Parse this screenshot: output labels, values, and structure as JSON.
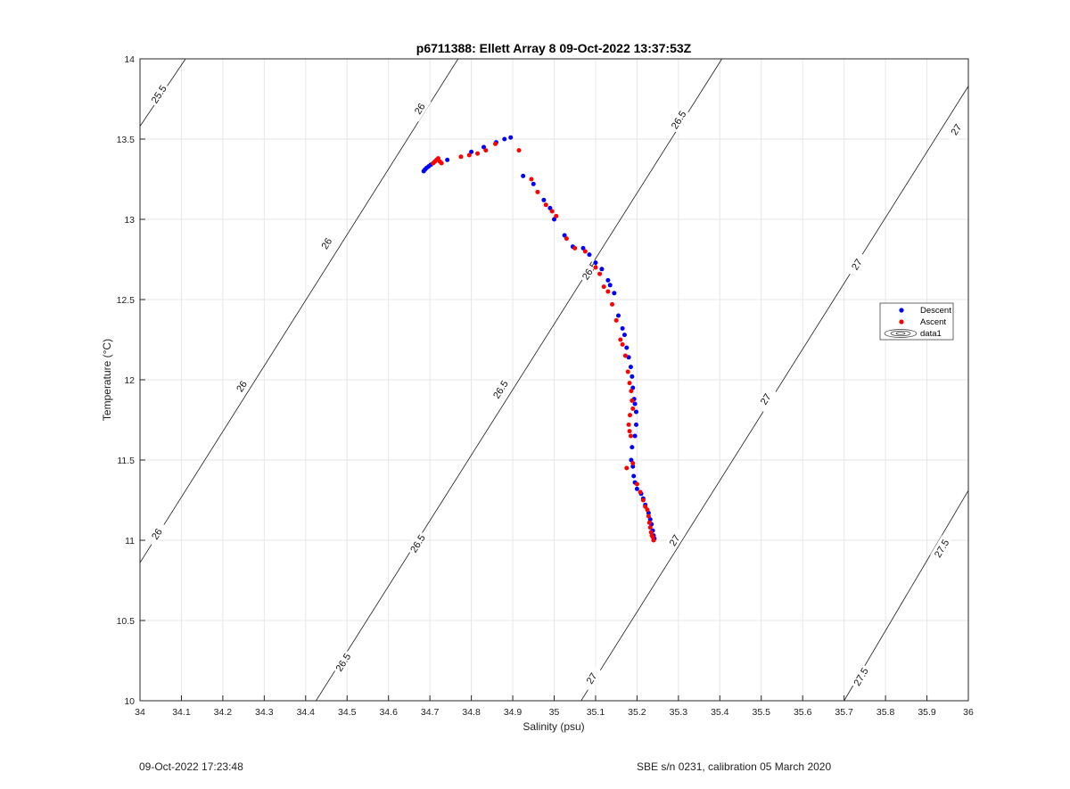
{
  "chart_data": {
    "type": "scatter",
    "title": "p6711388: Ellett Array 8 09-Oct-2022 13:37:53Z",
    "xlabel": "Salinity (psu)",
    "ylabel": "Temperature (°C)",
    "xlim": [
      34,
      36
    ],
    "ylim": [
      10,
      14
    ],
    "xticks": [
      34,
      34.1,
      34.2,
      34.3,
      34.4,
      34.5,
      34.6,
      34.7,
      34.8,
      34.9,
      35,
      35.1,
      35.2,
      35.3,
      35.4,
      35.5,
      35.6,
      35.7,
      35.8,
      35.9,
      36
    ],
    "xtick_labels": [
      "34",
      "34.1",
      "34.2",
      "34.3",
      "34.4",
      "34.5",
      "34.6",
      "34.7",
      "34.8",
      "34.9",
      "35",
      "35.1",
      "35.2",
      "35.3",
      "35.4",
      "35.5",
      "35.6",
      "35.7",
      "35.8",
      "35.9",
      "36"
    ],
    "yticks": [
      10,
      10.5,
      11,
      11.5,
      12,
      12.5,
      13,
      13.5,
      14
    ],
    "ytick_labels": [
      "10",
      "10.5",
      "11",
      "11.5",
      "12",
      "12.5",
      "13",
      "13.5",
      "14"
    ],
    "grid": true,
    "legend_position": "right",
    "series": [
      {
        "name": "Descent",
        "color": "#0000ff",
        "marker": "dot",
        "x": [
          34.685,
          34.688,
          34.692,
          34.697,
          34.702,
          34.742,
          34.8,
          34.83,
          34.86,
          34.88,
          34.895,
          34.925,
          34.95,
          34.975,
          34.99,
          35.0,
          35.025,
          35.045,
          35.07,
          35.085,
          35.1,
          35.115,
          35.13,
          35.135,
          35.145,
          35.155,
          35.165,
          35.17,
          35.175,
          35.18,
          35.185,
          35.188,
          35.19,
          35.193,
          35.195,
          35.198,
          35.198,
          35.195,
          35.188,
          35.186,
          35.19,
          35.192,
          35.195,
          35.2,
          35.21,
          35.215,
          35.22,
          35.228,
          35.232,
          35.235,
          35.238,
          35.24,
          35.242
        ],
        "y": [
          13.3,
          13.31,
          13.32,
          13.33,
          13.34,
          13.37,
          13.42,
          13.45,
          13.48,
          13.5,
          13.51,
          13.27,
          13.22,
          13.12,
          13.07,
          13.0,
          12.9,
          12.83,
          12.82,
          12.78,
          12.73,
          12.69,
          12.62,
          12.59,
          12.54,
          12.4,
          12.32,
          12.28,
          12.2,
          12.14,
          12.08,
          12.02,
          11.95,
          11.88,
          11.85,
          11.8,
          11.72,
          11.65,
          11.58,
          11.5,
          11.46,
          11.4,
          11.36,
          11.32,
          11.29,
          11.26,
          11.22,
          11.17,
          11.13,
          11.1,
          11.06,
          11.03,
          11.01
        ]
      },
      {
        "name": "Ascent",
        "color": "#ff0000",
        "marker": "dot",
        "x": [
          34.708,
          34.712,
          34.716,
          34.72,
          34.724,
          34.728,
          34.775,
          34.795,
          34.815,
          34.835,
          34.858,
          34.915,
          34.945,
          34.96,
          34.98,
          34.995,
          35.005,
          35.03,
          35.05,
          35.075,
          35.1,
          35.11,
          35.12,
          35.13,
          35.14,
          35.15,
          35.16,
          35.165,
          35.172,
          35.178,
          35.182,
          35.186,
          35.188,
          35.19,
          35.183,
          35.18,
          35.182,
          35.185,
          35.175,
          35.19,
          35.2,
          35.208,
          35.215,
          35.22,
          35.225,
          35.228,
          35.23,
          35.232,
          35.234,
          35.236,
          35.238,
          35.24
        ],
        "y": [
          13.35,
          13.36,
          13.37,
          13.38,
          13.36,
          13.35,
          13.39,
          13.4,
          13.41,
          13.43,
          13.47,
          13.43,
          13.25,
          13.17,
          13.09,
          13.05,
          13.02,
          12.88,
          12.82,
          12.8,
          12.7,
          12.66,
          12.58,
          12.55,
          12.47,
          12.37,
          12.25,
          12.22,
          12.15,
          12.05,
          11.98,
          11.93,
          11.87,
          11.82,
          11.78,
          11.72,
          11.68,
          11.65,
          11.45,
          11.48,
          11.35,
          11.3,
          11.25,
          11.21,
          11.19,
          11.15,
          11.11,
          11.08,
          11.05,
          11.03,
          11.02,
          11.0
        ]
      }
    ],
    "legend": [
      "Descent",
      "Ascent",
      "data1"
    ],
    "contours": [
      {
        "level": "25.5",
        "segments": [
          [
            [
              34.0,
              13.58
            ],
            [
              34.11,
              14.0
            ]
          ]
        ],
        "labels": [
          {
            "x": 34.045,
            "y": 13.78
          }
        ]
      },
      {
        "level": "26",
        "segments": [
          [
            [
              34.0,
              10.86
            ],
            [
              34.768,
              14.0
            ]
          ]
        ],
        "labels": [
          {
            "x": 34.04,
            "y": 11.04
          },
          {
            "x": 34.245,
            "y": 11.96
          },
          {
            "x": 34.45,
            "y": 12.85
          },
          {
            "x": 34.675,
            "y": 13.69
          }
        ]
      },
      {
        "level": "26.5",
        "segments": [
          [
            [
              34.425,
              10.0
            ],
            [
              35.405,
              14.0
            ]
          ]
        ],
        "labels": [
          {
            "x": 34.49,
            "y": 10.24
          },
          {
            "x": 34.67,
            "y": 10.98
          },
          {
            "x": 34.87,
            "y": 11.94
          },
          {
            "x": 35.085,
            "y": 12.68
          },
          {
            "x": 35.3,
            "y": 13.62
          }
        ]
      },
      {
        "level": "27",
        "segments": [
          [
            [
              35.065,
              10.0
            ],
            [
              36.0,
              13.83
            ]
          ]
        ],
        "labels": [
          {
            "x": 35.09,
            "y": 10.14
          },
          {
            "x": 35.29,
            "y": 11.0
          },
          {
            "x": 35.51,
            "y": 11.88
          },
          {
            "x": 35.73,
            "y": 12.72
          },
          {
            "x": 35.97,
            "y": 13.56
          }
        ]
      },
      {
        "level": "27.5",
        "segments": [
          [
            [
              35.7,
              10.0
            ],
            [
              36.0,
              11.31
            ]
          ]
        ],
        "labels": [
          {
            "x": 35.74,
            "y": 10.15
          },
          {
            "x": 35.935,
            "y": 10.95
          }
        ]
      }
    ]
  },
  "footer": {
    "left": "09-Oct-2022 17:23:48",
    "right": "SBE s/n 0231, calibration 05 March 2020"
  }
}
